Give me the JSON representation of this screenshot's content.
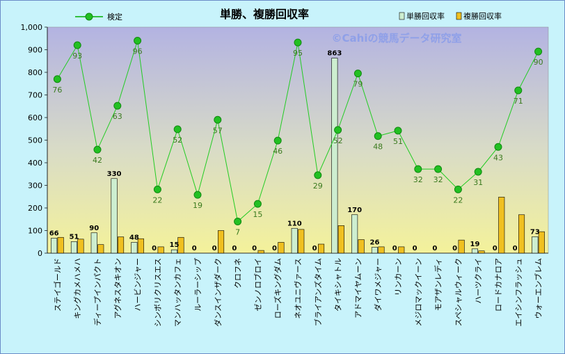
{
  "chart_data": {
    "type": "bar",
    "title": "単勝、複勝回収率",
    "watermark": "©Cahiの競馬データ研究室",
    "ylim": [
      0,
      1000
    ],
    "yticks": [
      "0",
      "100",
      "200",
      "300",
      "400",
      "500",
      "600",
      "700",
      "800",
      "900",
      "1,000"
    ],
    "grid": "none",
    "legend_position": "top",
    "categories": [
      "ステイゴールド",
      "キングカメハメハ",
      "ディープインパクト",
      "アグネスタキオン",
      "ハービンジャー",
      "シンボリクリスエス",
      "マンハッタンカフェ",
      "ルーラーシップ",
      "ダンスインザダーク",
      "クロフネ",
      "ゼンノロブロイ",
      "ローズキングダム",
      "ネオユニヴァース",
      "ブライアンズタイム",
      "タイキシャトル",
      "アドマイヤムーン",
      "ダイワメジャー",
      "リンカーン",
      "メジロマックイーン",
      "モアザンレディ",
      "スペシャルウィーク",
      "ハーツクライ",
      "ロードカナロア",
      "エイシンフラッシュ",
      "ウォーエンブレム"
    ],
    "series": [
      {
        "name": "単勝回収率",
        "color": "#cdeed0",
        "values": [
          66,
          51,
          90,
          330,
          48,
          0,
          15,
          0,
          0,
          0,
          0,
          0,
          110,
          0,
          863,
          170,
          26,
          0,
          0,
          0,
          0,
          19,
          0,
          0,
          73
        ]
      },
      {
        "name": "複勝回収率",
        "color": "#f0c020",
        "values": [
          70,
          62,
          38,
          72,
          64,
          28,
          70,
          0,
          100,
          0,
          12,
          48,
          105,
          40,
          122,
          60,
          28,
          28,
          0,
          0,
          58,
          10,
          248,
          170,
          95
        ]
      },
      {
        "name": "検定",
        "type": "line",
        "color": "#00b000",
        "values": [
          770,
          920,
          458,
          652,
          940,
          282,
          548,
          258,
          590,
          140,
          218,
          498,
          932,
          345,
          545,
          795,
          518,
          542,
          372,
          372,
          282,
          360,
          470,
          720,
          892
        ],
        "labels": [
          76,
          93,
          42,
          63,
          96,
          22,
          52,
          19,
          57,
          7,
          15,
          46,
          95,
          29,
          52,
          79,
          48,
          51,
          32,
          32,
          22,
          31,
          43,
          71,
          90
        ]
      }
    ],
    "bar_labels": [
      "66",
      "51",
      "90",
      "330",
      "48",
      "0",
      "15",
      "0",
      "0",
      "0",
      "0",
      "0",
      "110",
      "0",
      "863",
      "170",
      "26",
      "0",
      "0",
      "0",
      "0",
      "19",
      "0",
      "0",
      "73"
    ]
  }
}
